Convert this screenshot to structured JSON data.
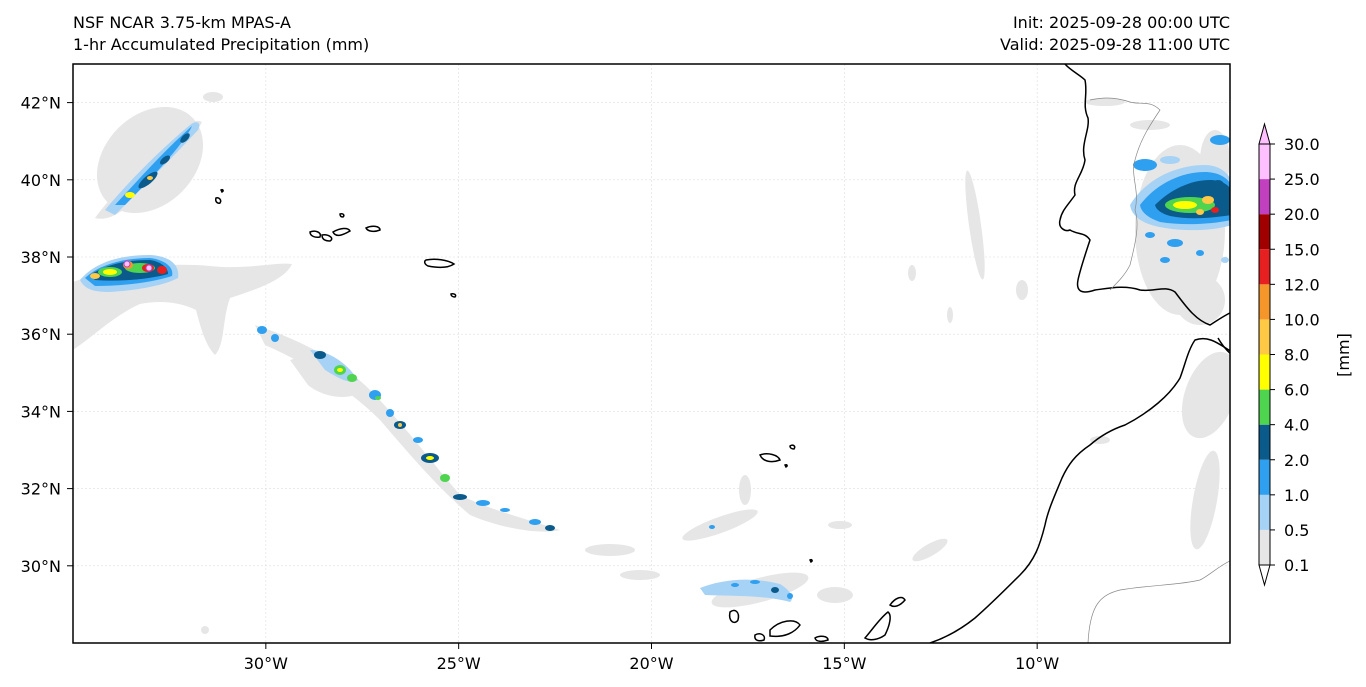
{
  "header": {
    "model_title": "NSF NCAR 3.75-km MPAS-A",
    "field_title": "1-hr Accumulated Precipitation (mm)",
    "init_time": "Init: 2025-09-28 00:00 UTC",
    "valid_time": "Valid: 2025-09-28 11:00 UTC"
  },
  "map": {
    "lon_range": [
      -35,
      -5
    ],
    "lat_range": [
      28,
      43
    ],
    "lon_ticks": [
      {
        "value": -30,
        "label": "30°W"
      },
      {
        "value": -25,
        "label": "25°W"
      },
      {
        "value": -20,
        "label": "20°W"
      },
      {
        "value": -15,
        "label": "15°W"
      },
      {
        "value": -10,
        "label": "10°W"
      }
    ],
    "lat_ticks": [
      {
        "value": 42,
        "label": "42°N"
      },
      {
        "value": 40,
        "label": "40°N"
      },
      {
        "value": 38,
        "label": "38°N"
      },
      {
        "value": 36,
        "label": "36°N"
      },
      {
        "value": 34,
        "label": "34°N"
      },
      {
        "value": 32,
        "label": "32°N"
      },
      {
        "value": 30,
        "label": "30°N"
      }
    ],
    "gridlines": true,
    "coastline_color": "#000000",
    "border_color": "#888888"
  },
  "colorbar": {
    "unit_label": "[mm]",
    "levels": [
      "0.1",
      "0.5",
      "1.0",
      "2.0",
      "4.0",
      "6.0",
      "8.0",
      "10.0",
      "12.0",
      "15.0",
      "20.0",
      "25.0",
      "30.0"
    ],
    "colors": [
      "#e6e6e6",
      "#a6d2f5",
      "#2f9ff0",
      "#0a5a8c",
      "#4ed44e",
      "#ffff00",
      "#ffc845",
      "#f5962a",
      "#e62020",
      "#a00000",
      "#c040c0",
      "#ffc0ff"
    ],
    "extend": "both"
  }
}
